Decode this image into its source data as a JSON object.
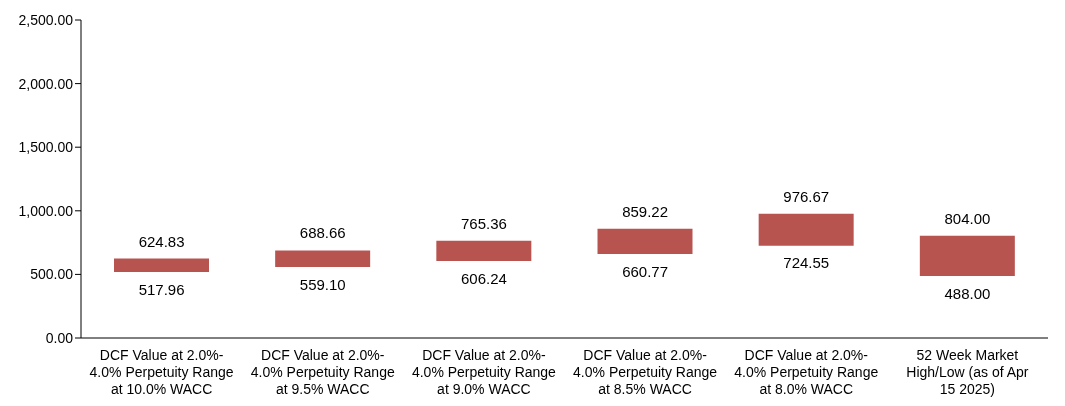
{
  "chart_data": {
    "type": "bar",
    "categories": [
      "DCF Value at 2.0%-4.0% Perpetuity Range at 10.0% WACC",
      "DCF Value at 2.0%-4.0% Perpetuity Range at 9.5% WACC",
      "DCF Value at 2.0%-4.0% Perpetuity Range at 9.0% WACC",
      "DCF Value at 2.0%-4.0% Perpetuity Range at 8.5% WACC",
      "DCF Value at 2.0%-4.0% Perpetuity Range at 8.0% WACC",
      "52 Week Market High/Low (as of Apr 15 2025)"
    ],
    "base": [
      517.96,
      559.1,
      606.24,
      660.77,
      724.55,
      488.0
    ],
    "values": [
      106.87,
      129.56,
      159.12,
      198.45,
      252.12,
      316.0
    ],
    "color": "#b85450",
    "ylim": [
      0,
      2500
    ],
    "yticks": [
      {
        "value": 0,
        "label": "0.00"
      },
      {
        "value": 500,
        "label": "500.00"
      },
      {
        "value": 1000,
        "label": "1,000.00"
      },
      {
        "value": 1500,
        "label": "1,500.00"
      },
      {
        "value": 2000,
        "label": "2,000.00"
      },
      {
        "value": 2500,
        "label": "2,500.00"
      }
    ],
    "grid": false,
    "annotations": [
      {
        "text": "624.83",
        "x": "DCF Value at 2.0%-4.0% Perpetuity Range at 10.0% WACC",
        "y": 624.83
      },
      {
        "text": "517.96",
        "x": "DCF Value at 2.0%-4.0% Perpetuity Range at 10.0% WACC",
        "y": 517.96
      },
      {
        "text": "688.66",
        "x": "DCF Value at 2.0%-4.0% Perpetuity Range at 9.5% WACC",
        "y": 688.66
      },
      {
        "text": "559.10",
        "x": "DCF Value at 2.0%-4.0% Perpetuity Range at 9.5% WACC",
        "y": 559.1
      },
      {
        "text": "765.36",
        "x": "DCF Value at 2.0%-4.0% Perpetuity Range at 9.0% WACC",
        "y": 765.36
      },
      {
        "text": "606.24",
        "x": "DCF Value at 2.0%-4.0% Perpetuity Range at 9.0% WACC",
        "y": 606.24
      },
      {
        "text": "859.22",
        "x": "DCF Value at 2.0%-4.0% Perpetuity Range at 8.5% WACC",
        "y": 859.22
      },
      {
        "text": "660.77",
        "x": "DCF Value at 2.0%-4.0% Perpetuity Range at 8.5% WACC",
        "y": 660.77
      },
      {
        "text": "976.67",
        "x": "DCF Value at 2.0%-4.0% Perpetuity Range at 8.0% WACC",
        "y": 976.67
      },
      {
        "text": "724.55",
        "x": "DCF Value at 2.0%-4.0% Perpetuity Range at 8.0% WACC",
        "y": 724.55
      },
      {
        "text": "804.00",
        "x": "52 Week Market High/Low (as of Apr 15 2025)",
        "y": 804.0
      },
      {
        "text": "488.00",
        "x": "52 Week Market High/Low (as of Apr 15 2025)",
        "y": 488.0
      }
    ]
  }
}
